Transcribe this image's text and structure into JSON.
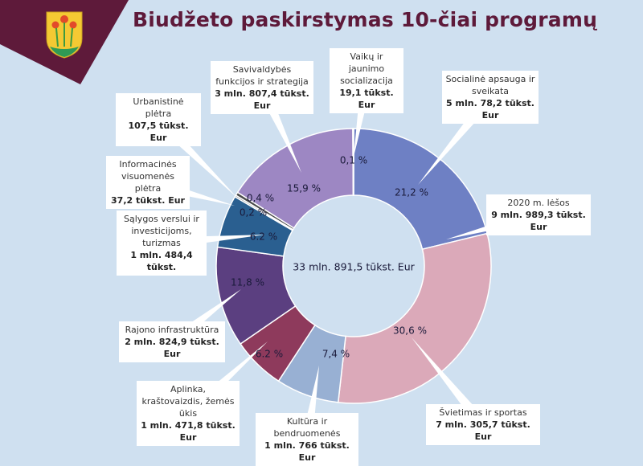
{
  "title": "Biudžeto paskirstymas 10-čiai programų",
  "colors": {
    "background": "#cfe0f0",
    "banner": "#5e1a3a",
    "title": "#5e1a3a"
  },
  "logo": {
    "icon": "coat-of-arms-icon"
  },
  "chart_data": {
    "type": "pie",
    "donut": true,
    "title": "Biudžeto paskirstymas 10-čiai programų",
    "center_label": "33 mln. 891,5 tūkst. Eur",
    "slices": [
      {
        "name": "Socialinė apsauga ir sveikata",
        "amount": "5 mln. 78,2 tūkst. Eur",
        "value": 21.2,
        "label": "21,2 %",
        "color": "#6e80c4"
      },
      {
        "name": "Švietimas ir sportas",
        "amount": "7 mln. 305,7 tūkst. Eur",
        "value": 30.6,
        "label": "30,6 %",
        "color": "#dba9b9"
      },
      {
        "name": "Kultūra ir bendruomenės",
        "amount": "1 mln. 766 tūkst. Eur",
        "value": 7.4,
        "label": "7,4 %",
        "color": "#98b0d3"
      },
      {
        "name": "Aplinka, kraštovaizdis, žemės ūkis",
        "amount": "1 mln. 471,8 tūkst. Eur",
        "value": 6.2,
        "label": "6.2 %",
        "color": "#8e3a5c"
      },
      {
        "name": "Rajono infrastruktūra",
        "amount": "2 mln. 824,9 tūkst. Eur",
        "value": 11.8,
        "label": "11,8 %",
        "color": "#5b3f80"
      },
      {
        "name": "Sąlygos verslui ir investicijoms, turizmas",
        "amount": "1 mln. 484,4 tūkst.",
        "value": 6.2,
        "label": "6.2 %",
        "color": "#2a5f90"
      },
      {
        "name": "Informacinės visuomenės plėtra",
        "amount": "37,2 tūkst. Eur",
        "value": 0.2,
        "label": "0,2 %",
        "color": "#8a8a8a"
      },
      {
        "name": "Urbanistinė plėtra",
        "amount": "107,5 tūkst. Eur",
        "value": 0.4,
        "label": "0,4 %",
        "color": "#4a4a4a"
      },
      {
        "name": "Savivaldybės funkcijos ir strategija",
        "amount": "3 mln. 807,4 tūkst. Eur",
        "value": 15.9,
        "label": "15,9 %",
        "color": "#9d87c3"
      },
      {
        "name": "Vaikų ir jaunimo socializacija",
        "amount": "19,1 tūkst. Eur",
        "value": 0.1,
        "label": "0,1 %",
        "color": "#5563a8"
      }
    ],
    "annotations": [
      {
        "name": "2020 m. lėšos",
        "amount": "9 mln. 989,3 tūkst. Eur"
      }
    ]
  }
}
